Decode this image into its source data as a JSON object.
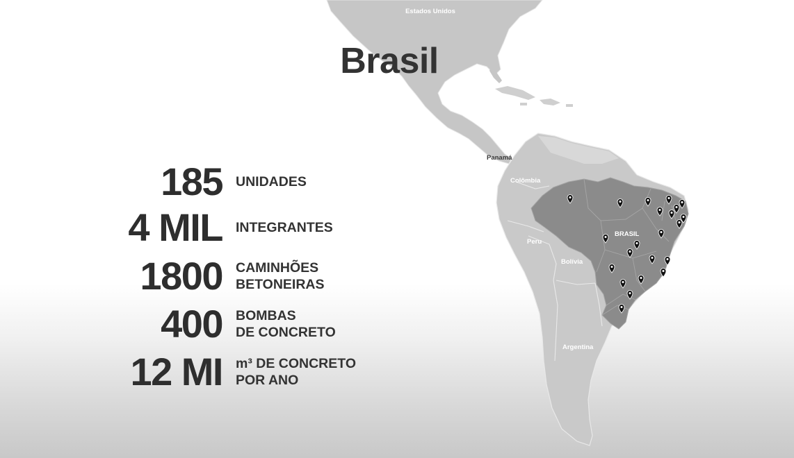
{
  "title": "Brasil",
  "stats": [
    {
      "number": "185",
      "line1": "UNIDADES",
      "line2": ""
    },
    {
      "number": "4 MIL",
      "line1": "INTEGRANTES",
      "line2": ""
    },
    {
      "number": "1800",
      "line1": "CAMINHÕES",
      "line2": "BETONEIRAS"
    },
    {
      "number": "400",
      "line1": "BOMBAS",
      "line2": "DE CONCRETO"
    },
    {
      "number": "12 MI",
      "line1": "m³ DE CONCRETO",
      "line2": "POR ANO"
    }
  ],
  "map": {
    "labels": {
      "usa": "Estados Unidos",
      "panama": "Panamá",
      "colombia": "Colômbia",
      "peru": "Peru",
      "bolivia": "Bolívia",
      "brazil": "BRASIL",
      "argentina": "Argentina"
    },
    "colors": {
      "land": "#c4c4c4",
      "land_light": "#dedede",
      "brazil": "#8a8a8a",
      "pin": "#111111"
    },
    "marker_count": 25
  }
}
